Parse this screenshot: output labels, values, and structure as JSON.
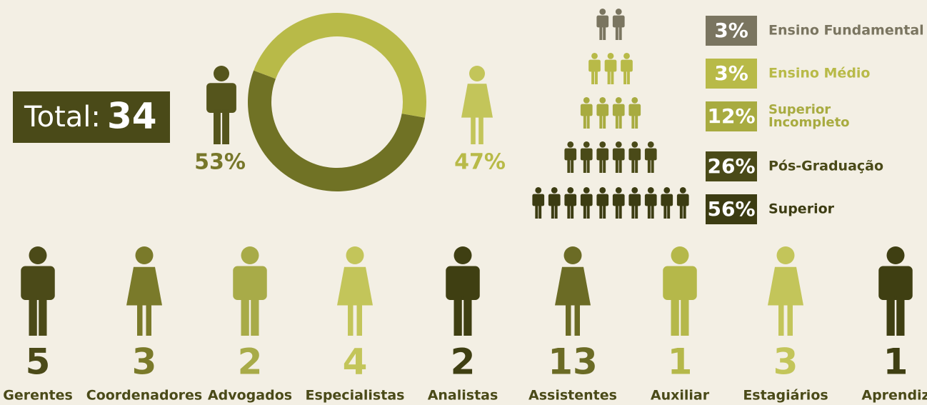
{
  "total": {
    "label": "Total:",
    "value": 34
  },
  "gender": {
    "values": [
      53,
      47
    ],
    "value_labels": [
      "53%",
      "47%"
    ],
    "colors": [
      "#707225",
      "#b8ba48"
    ]
  },
  "education": {
    "values": [
      3,
      3,
      12,
      26,
      56
    ],
    "value_labels": [
      "3%",
      "3%",
      "12%",
      "26%",
      "56%"
    ],
    "labels": [
      "Ensino Fundamental",
      "Ensino Médio",
      "Superior Incompleto",
      "Pós-Graduação",
      "Superior"
    ],
    "colors": [
      "#7a7560",
      "#b8ba48",
      "#a8ab40",
      "#4a4a18",
      "#3c3c12"
    ]
  },
  "roles": [
    {
      "count": 5,
      "label": "Gerentes"
    },
    {
      "count": 3,
      "label": "Coordenadores"
    },
    {
      "count": 2,
      "label": "Advogados"
    },
    {
      "count": 4,
      "label": "Especialistas"
    },
    {
      "count": 2,
      "label": "Analistas"
    },
    {
      "count": 13,
      "label": "Assistentes"
    },
    {
      "count": 1,
      "label": "Auxiliar"
    },
    {
      "count": 3,
      "label": "Estagiários"
    },
    {
      "count": 1,
      "label": "Aprendiz"
    }
  ]
}
